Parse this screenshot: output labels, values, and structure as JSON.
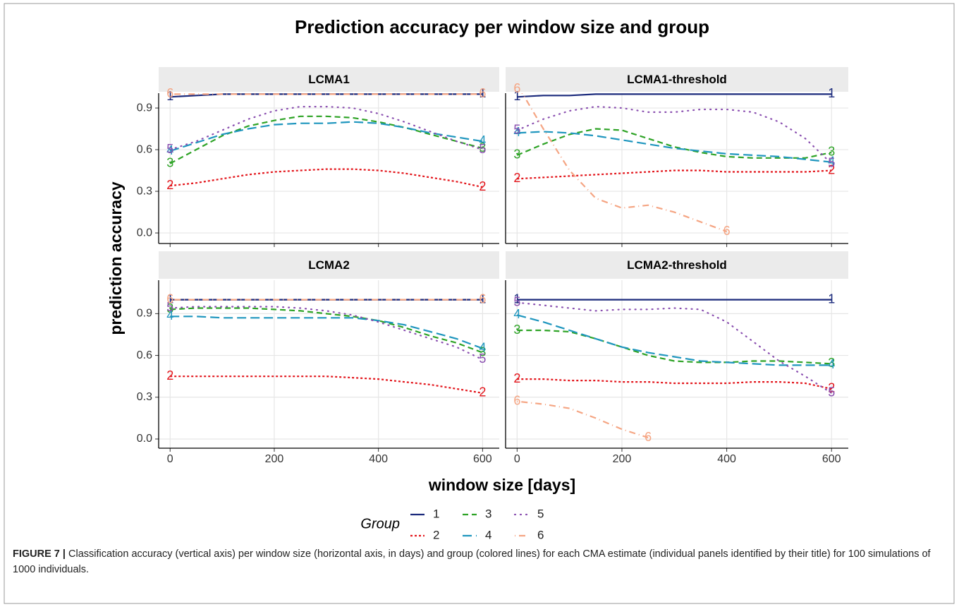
{
  "title": "Prediction accuracy per window size and group",
  "x_label": "window size [days]",
  "y_label": "prediction accuracy",
  "legend_title": "Group",
  "caption": {
    "label": "FIGURE 7 |",
    "text": "Classification accuracy (vertical axis) per window size (horizontal axis, in days) and group (colored lines) for each CMA estimate (individual panels identified by their title) for 100 simulations of 1000 individuals."
  },
  "chart_data": [
    {
      "type": "line",
      "title": "LCMA1",
      "x": [
        0,
        50,
        100,
        150,
        200,
        250,
        300,
        350,
        400,
        450,
        500,
        550,
        600
      ],
      "xlim": [
        -22,
        632
      ],
      "ylim": [
        -0.076,
        1.007
      ],
      "xticks": [
        0,
        200,
        400,
        600
      ],
      "yticks": [
        {
          "value": 0,
          "label": "0.0"
        },
        0.3,
        0.6,
        0.9
      ],
      "grid": true,
      "series": [
        {
          "name": "1",
          "color": "#1b2a7c",
          "linetype": "solid",
          "values": [
            0.98,
            0.99,
            1,
            1,
            1,
            1,
            1,
            1,
            1,
            1,
            1,
            1,
            1
          ]
        },
        {
          "name": "2",
          "color": "#e3151b",
          "linetype": "dotted-dash",
          "values": [
            0.34,
            0.36,
            0.39,
            0.42,
            0.44,
            0.45,
            0.46,
            0.46,
            0.45,
            0.43,
            0.4,
            0.37,
            0.33
          ]
        },
        {
          "name": "3",
          "color": "#2ea326",
          "linetype": "dashed",
          "values": [
            0.5,
            0.6,
            0.7,
            0.77,
            0.81,
            0.84,
            0.84,
            0.83,
            0.8,
            0.76,
            0.71,
            0.66,
            0.61
          ]
        },
        {
          "name": "4",
          "color": "#1f96be",
          "linetype": "longdash",
          "values": [
            0.59,
            0.65,
            0.71,
            0.75,
            0.78,
            0.79,
            0.79,
            0.8,
            0.79,
            0.76,
            0.72,
            0.69,
            0.66
          ]
        },
        {
          "name": "5",
          "color": "#8a4fb0",
          "linetype": "dotted",
          "values": [
            0.6,
            0.66,
            0.74,
            0.82,
            0.88,
            0.91,
            0.91,
            0.9,
            0.86,
            0.8,
            0.73,
            0.66,
            0.6
          ]
        },
        {
          "name": "6",
          "color": "#f5a583",
          "linetype": "dotdash",
          "values": [
            1,
            1,
            1,
            1,
            1,
            1,
            1,
            1,
            1,
            1,
            1,
            1,
            1
          ]
        }
      ]
    },
    {
      "type": "line",
      "title": "LCMA1-threshold",
      "x": [
        0,
        50,
        100,
        150,
        200,
        250,
        300,
        350,
        400,
        450,
        500,
        550,
        600
      ],
      "xlim": [
        -22,
        632
      ],
      "ylim": [
        -0.076,
        1.007
      ],
      "xticks": [
        0,
        200,
        400,
        600
      ],
      "yticks": [
        {
          "value": 0,
          "label": "0.0"
        },
        0.3,
        0.6,
        0.9
      ],
      "grid": true,
      "series": [
        {
          "name": "1",
          "color": "#1b2a7c",
          "linetype": "solid",
          "values": [
            0.98,
            0.99,
            0.99,
            1,
            1,
            1,
            1,
            1,
            1,
            1,
            1,
            1,
            1
          ]
        },
        {
          "name": "2",
          "color": "#e3151b",
          "linetype": "dotted-dash",
          "values": [
            0.39,
            0.4,
            0.41,
            0.42,
            0.43,
            0.44,
            0.45,
            0.45,
            0.44,
            0.44,
            0.44,
            0.44,
            0.45
          ]
        },
        {
          "name": "3",
          "color": "#2ea326",
          "linetype": "dashed",
          "values": [
            0.56,
            0.64,
            0.71,
            0.75,
            0.74,
            0.68,
            0.62,
            0.58,
            0.55,
            0.54,
            0.54,
            0.54,
            0.58
          ]
        },
        {
          "name": "4",
          "color": "#1f96be",
          "linetype": "longdash",
          "values": [
            0.72,
            0.73,
            0.72,
            0.7,
            0.67,
            0.64,
            0.61,
            0.59,
            0.57,
            0.56,
            0.55,
            0.53,
            0.51
          ]
        },
        {
          "name": "5",
          "color": "#8a4fb0",
          "linetype": "dotted",
          "values": [
            0.74,
            0.82,
            0.88,
            0.91,
            0.9,
            0.87,
            0.87,
            0.89,
            0.89,
            0.87,
            0.8,
            0.68,
            0.5
          ]
        },
        {
          "name": "6",
          "color": "#f5a583",
          "linetype": "dotdash",
          "values": [
            1.07,
            0.75,
            0.45,
            0.25,
            0.18,
            0.2,
            0.15,
            0.08,
            0.01,
            null,
            null,
            null,
            null
          ]
        }
      ]
    },
    {
      "type": "line",
      "title": "LCMA2",
      "x": [
        0,
        50,
        100,
        150,
        200,
        250,
        300,
        350,
        400,
        450,
        500,
        550,
        600
      ],
      "xlim": [
        -22,
        632
      ],
      "ylim": [
        -0.066,
        1.14
      ],
      "xticks": [
        0,
        200,
        400,
        600
      ],
      "yticks": [
        {
          "value": 0,
          "label": "0.0"
        },
        0.3,
        0.6,
        0.9
      ],
      "grid": true,
      "series": [
        {
          "name": "1",
          "color": "#1b2a7c",
          "linetype": "solid",
          "values": [
            1,
            1,
            1,
            1,
            1,
            1,
            1,
            1,
            1,
            1,
            1,
            1,
            1
          ]
        },
        {
          "name": "2",
          "color": "#e3151b",
          "linetype": "dotted-dash",
          "values": [
            0.45,
            0.45,
            0.45,
            0.45,
            0.45,
            0.45,
            0.45,
            0.44,
            0.43,
            0.41,
            0.39,
            0.36,
            0.33
          ]
        },
        {
          "name": "3",
          "color": "#2ea326",
          "linetype": "dashed",
          "values": [
            0.93,
            0.94,
            0.94,
            0.94,
            0.93,
            0.92,
            0.9,
            0.88,
            0.85,
            0.8,
            0.74,
            0.69,
            0.62
          ]
        },
        {
          "name": "4",
          "color": "#1f96be",
          "linetype": "longdash",
          "values": [
            0.88,
            0.88,
            0.87,
            0.87,
            0.87,
            0.87,
            0.87,
            0.87,
            0.85,
            0.82,
            0.77,
            0.72,
            0.65
          ]
        },
        {
          "name": "5",
          "color": "#8a4fb0",
          "linetype": "dotted",
          "values": [
            0.94,
            0.95,
            0.95,
            0.95,
            0.95,
            0.94,
            0.92,
            0.89,
            0.84,
            0.78,
            0.72,
            0.66,
            0.57
          ]
        },
        {
          "name": "6",
          "color": "#f5a583",
          "linetype": "dotdash",
          "values": [
            1,
            1,
            1,
            1,
            1,
            1,
            1,
            1,
            1,
            1,
            1,
            1,
            1
          ]
        }
      ]
    },
    {
      "type": "line",
      "title": "LCMA2-threshold",
      "x": [
        0,
        50,
        100,
        150,
        200,
        250,
        300,
        350,
        400,
        450,
        500,
        550,
        600
      ],
      "xlim": [
        -22,
        632
      ],
      "ylim": [
        -0.066,
        1.14
      ],
      "xticks": [
        0,
        200,
        400,
        600
      ],
      "yticks": [
        {
          "value": 0,
          "label": "0.0"
        },
        0.3,
        0.6,
        0.9
      ],
      "grid": true,
      "series": [
        {
          "name": "1",
          "color": "#1b2a7c",
          "linetype": "solid",
          "values": [
            1,
            1,
            1,
            1,
            1,
            1,
            1,
            1,
            1,
            1,
            1,
            1,
            1
          ]
        },
        {
          "name": "2",
          "color": "#e3151b",
          "linetype": "dotted-dash",
          "values": [
            0.43,
            0.43,
            0.42,
            0.42,
            0.41,
            0.41,
            0.4,
            0.4,
            0.4,
            0.41,
            0.41,
            0.4,
            0.36
          ]
        },
        {
          "name": "3",
          "color": "#2ea326",
          "linetype": "dashed",
          "values": [
            0.78,
            0.78,
            0.77,
            0.72,
            0.66,
            0.6,
            0.56,
            0.55,
            0.55,
            0.56,
            0.56,
            0.55,
            0.54
          ]
        },
        {
          "name": "4",
          "color": "#1f96be",
          "linetype": "longdash",
          "values": [
            0.89,
            0.84,
            0.78,
            0.72,
            0.66,
            0.62,
            0.59,
            0.56,
            0.55,
            0.54,
            0.53,
            0.53,
            0.53
          ]
        },
        {
          "name": "5",
          "color": "#8a4fb0",
          "linetype": "dotted",
          "values": [
            0.98,
            0.96,
            0.94,
            0.92,
            0.93,
            0.93,
            0.94,
            0.93,
            0.84,
            0.7,
            0.56,
            0.45,
            0.33
          ]
        },
        {
          "name": "6",
          "color": "#f5a583",
          "linetype": "dotdash",
          "values": [
            0.27,
            0.25,
            0.22,
            0.15,
            0.07,
            0.01,
            null,
            null,
            null,
            null,
            null,
            null,
            null
          ]
        }
      ]
    }
  ]
}
